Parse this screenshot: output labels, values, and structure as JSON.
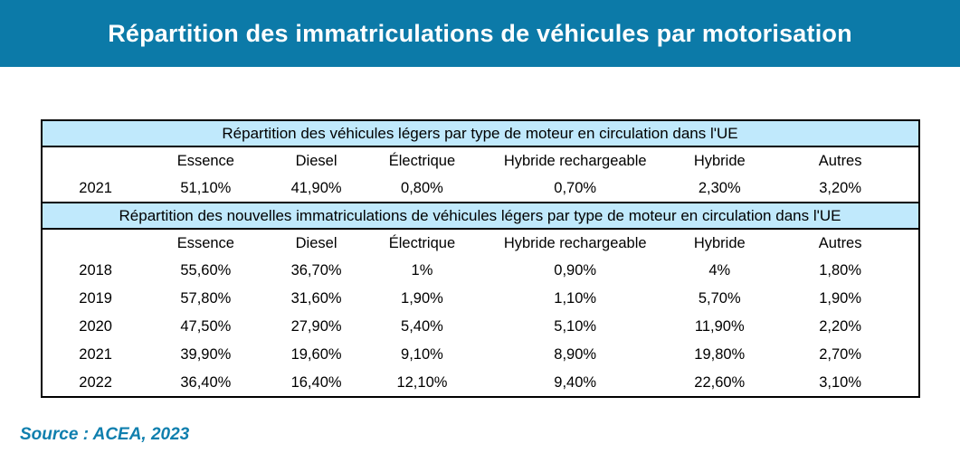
{
  "colors": {
    "banner_bg": "#0c7aa8",
    "banner_text": "#ffffff",
    "section_header_bg": "#c0e9fc",
    "table_border": "#000000",
    "source_text": "#0f7fae"
  },
  "banner": {
    "title": "Répartition des immatriculations de véhicules par motorisation"
  },
  "table": {
    "sections": [
      {
        "title": "Répartition des véhicules légers par type de moteur en circulation dans l'UE",
        "columns": [
          "",
          "Essence",
          "Diesel",
          "Électrique",
          "Hybride rechargeable",
          "Hybride",
          "Autres"
        ],
        "rows": [
          [
            "2021",
            "51,10%",
            "41,90%",
            "0,80%",
            "0,70%",
            "2,30%",
            "3,20%"
          ]
        ]
      },
      {
        "title": "Répartition des nouvelles immatriculations de véhicules légers par type de moteur en circulation dans l'UE",
        "columns": [
          "",
          "Essence",
          "Diesel",
          "Électrique",
          "Hybride rechargeable",
          "Hybride",
          "Autres"
        ],
        "rows": [
          [
            "2018",
            "55,60%",
            "36,70%",
            "1%",
            "0,90%",
            "4%",
            "1,80%"
          ],
          [
            "2019",
            "57,80%",
            "31,60%",
            "1,90%",
            "1,10%",
            "5,70%",
            "1,90%"
          ],
          [
            "2020",
            "47,50%",
            "27,90%",
            "5,40%",
            "5,10%",
            "11,90%",
            "2,20%"
          ],
          [
            "2021",
            "39,90%",
            "19,60%",
            "9,10%",
            "8,90%",
            "19,80%",
            "2,70%"
          ],
          [
            "2022",
            "36,40%",
            "16,40%",
            "12,10%",
            "9,40%",
            "22,60%",
            "3,10%"
          ]
        ]
      }
    ]
  },
  "source": {
    "label": "Source : ACEA, 2023"
  },
  "chart_data": [
    {
      "type": "table",
      "title": "Répartition des véhicules légers par type de moteur en circulation dans l'UE",
      "categories": [
        "Essence",
        "Diesel",
        "Électrique",
        "Hybride rechargeable",
        "Hybride",
        "Autres"
      ],
      "series": [
        {
          "name": "2021",
          "values": [
            51.1,
            41.9,
            0.8,
            0.7,
            2.3,
            3.2
          ]
        }
      ],
      "value_unit": "%"
    },
    {
      "type": "table",
      "title": "Répartition des nouvelles immatriculations de véhicules légers par type de moteur en circulation dans l'UE",
      "categories": [
        "Essence",
        "Diesel",
        "Électrique",
        "Hybride rechargeable",
        "Hybride",
        "Autres"
      ],
      "series": [
        {
          "name": "2018",
          "values": [
            55.6,
            36.7,
            1.0,
            0.9,
            4.0,
            1.8
          ]
        },
        {
          "name": "2019",
          "values": [
            57.8,
            31.6,
            1.9,
            1.1,
            5.7,
            1.9
          ]
        },
        {
          "name": "2020",
          "values": [
            47.5,
            27.9,
            5.4,
            5.1,
            11.9,
            2.2
          ]
        },
        {
          "name": "2021",
          "values": [
            39.9,
            19.6,
            9.1,
            8.9,
            19.8,
            2.7
          ]
        },
        {
          "name": "2022",
          "values": [
            36.4,
            16.4,
            12.1,
            9.4,
            22.6,
            3.1
          ]
        }
      ],
      "value_unit": "%"
    }
  ]
}
